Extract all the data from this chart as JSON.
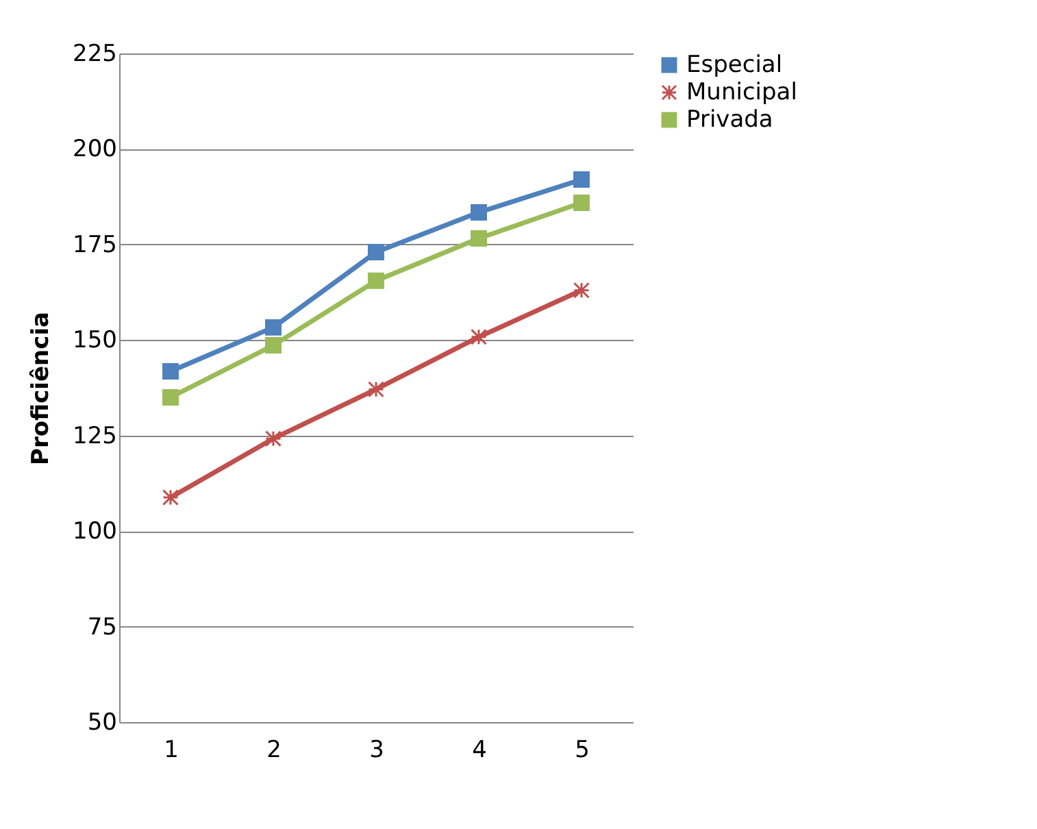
{
  "chart_data": {
    "type": "line",
    "ylabel": "Proficiência",
    "categories": [
      "1",
      "2",
      "3",
      "4",
      "5"
    ],
    "series": [
      {
        "name": "Especial",
        "color": "#4f81bd",
        "marker": "square",
        "values": [
          141.8,
          153.3,
          173,
          183.4,
          192
        ]
      },
      {
        "name": "Municipal",
        "color": "#c0504d",
        "marker": "cross",
        "values": [
          108.8,
          124.2,
          137.1,
          150.8,
          163
        ]
      },
      {
        "name": "Privada",
        "color": "#9bbb59",
        "marker": "square",
        "values": [
          135,
          148.6,
          165.5,
          176.6,
          185.9
        ]
      }
    ],
    "ylim": [
      50,
      225
    ],
    "yticks": [
      50,
      75,
      100,
      125,
      150,
      175,
      200,
      225
    ],
    "grid": "y",
    "legend": "right"
  }
}
